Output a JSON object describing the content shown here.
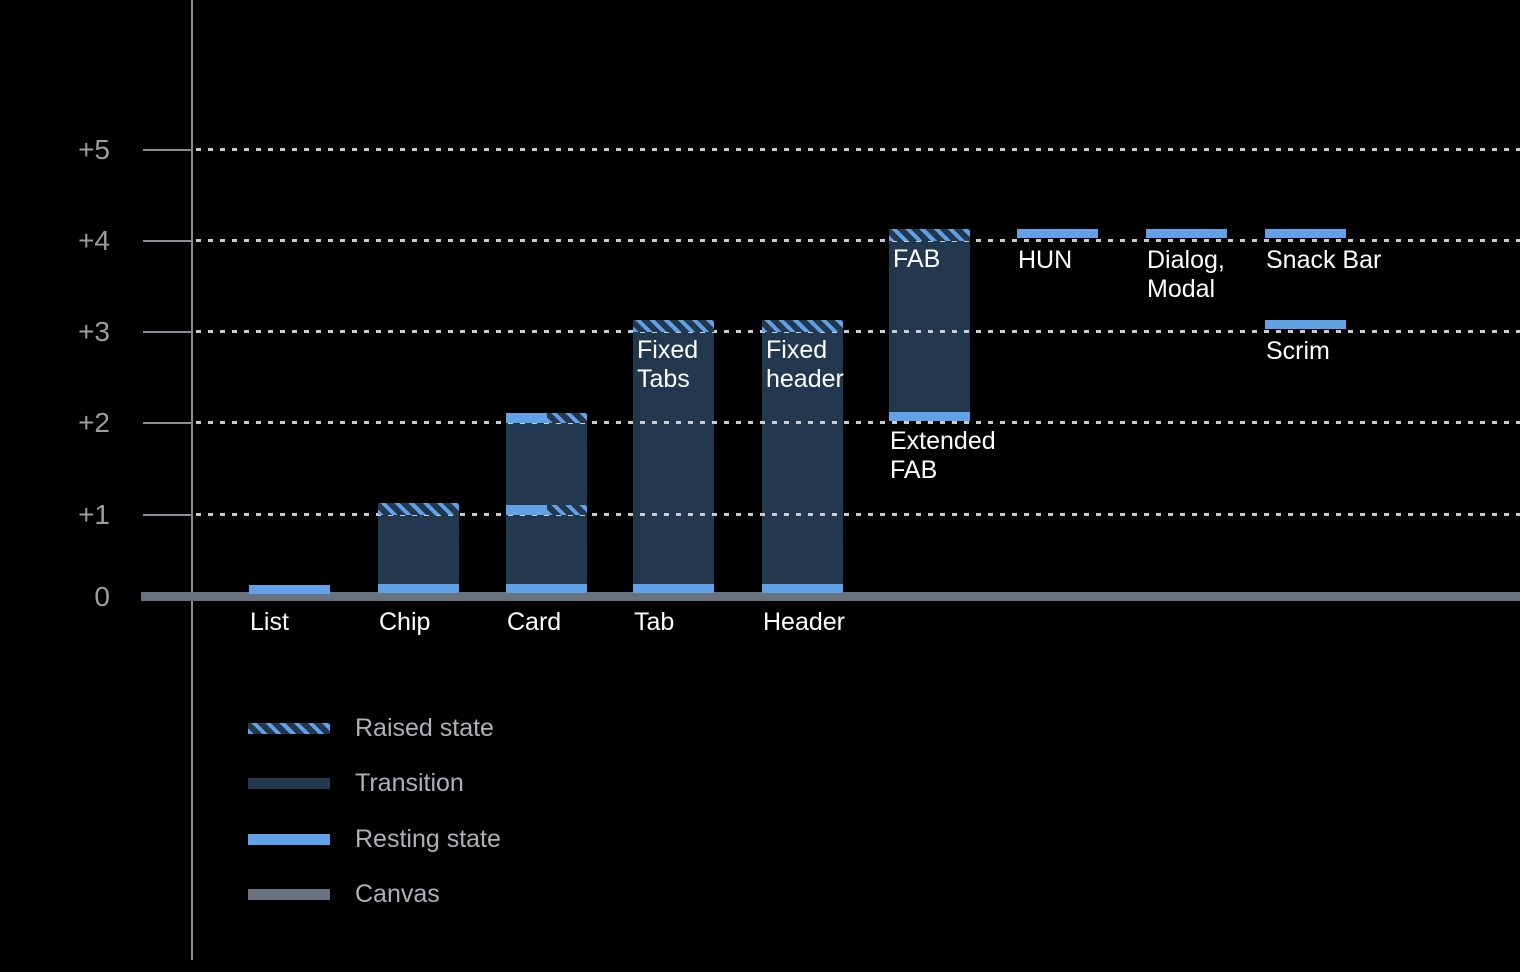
{
  "colors": {
    "background": "#000000",
    "resting_blue": "#60A1E7",
    "transition_navy": "#22384F",
    "canvas_gray": "#6A7280",
    "axis_gray": "#8A8E96",
    "grid_dot": "#C9CCD1",
    "y_label_gray": "#9D9D9D",
    "legend_text_gray": "#AEB1B6",
    "component_label_white": "#FFFFFF"
  },
  "chart_data": {
    "type": "bar",
    "subtype": "elevation-range-diagram",
    "y_axis": {
      "labels": [
        "+5",
        "+4",
        "+3",
        "+2",
        "+1",
        "0"
      ],
      "levels": [
        5,
        4,
        3,
        2,
        1,
        0
      ],
      "range": [
        0,
        5
      ],
      "gridlines": "dotted horizontal at +1..+5, solid thick canvas line at 0"
    },
    "legend": [
      {
        "label": "Raised state",
        "style": "raised"
      },
      {
        "label": "Transition",
        "style": "transition"
      },
      {
        "label": "Resting state",
        "style": "resting"
      },
      {
        "label": "Canvas",
        "style": "canvas"
      }
    ],
    "components": [
      {
        "name": "list",
        "col": 0,
        "label": "List",
        "label_placement": "canvas",
        "bar": null,
        "bands": [
          {
            "level": 0,
            "style": "resting"
          }
        ]
      },
      {
        "name": "chip",
        "col": 1,
        "label": "Chip",
        "label_placement": "canvas",
        "bar": {
          "from": 0,
          "to": 1
        },
        "bands": [
          {
            "level": 0,
            "style": "resting"
          },
          {
            "level": 1,
            "style": "raised"
          }
        ]
      },
      {
        "name": "card",
        "col": 2,
        "label": "Card",
        "label_placement": "canvas",
        "bar": {
          "from": 0,
          "to": 2
        },
        "bands": [
          {
            "level": 0,
            "style": "resting"
          },
          {
            "level": 1,
            "style": "split"
          },
          {
            "level": 2,
            "style": "split"
          }
        ]
      },
      {
        "name": "tab",
        "col": 3,
        "label": "Tab",
        "label_placement": "canvas",
        "inside_label": "Fixed\nTabs",
        "bar": {
          "from": 0,
          "to": 3
        },
        "bands": [
          {
            "level": 0,
            "style": "resting"
          },
          {
            "level": 3,
            "style": "raised"
          }
        ]
      },
      {
        "name": "header",
        "col": 4,
        "label": "Header",
        "label_placement": "canvas",
        "inside_label": "Fixed\nheader",
        "bar": {
          "from": 0,
          "to": 3
        },
        "bands": [
          {
            "level": 0,
            "style": "resting"
          },
          {
            "level": 3,
            "style": "raised"
          }
        ]
      },
      {
        "name": "fab",
        "col": 5,
        "label": "Extended\nFAB",
        "label_placement": "bar-bottom",
        "inside_label": "FAB",
        "bar": {
          "from": 2,
          "to": 4
        },
        "bands": [
          {
            "level": 2,
            "style": "resting"
          },
          {
            "level": 4,
            "style": "raised"
          }
        ]
      },
      {
        "name": "hun",
        "col": 6,
        "label": "HUN",
        "label_placement": "band",
        "bar": null,
        "bands": [
          {
            "level": 4,
            "style": "resting"
          }
        ]
      },
      {
        "name": "dialog-modal",
        "col": 7,
        "label": "Dialog,\nModal",
        "label_placement": "band",
        "bar": null,
        "bands": [
          {
            "level": 4,
            "style": "resting"
          }
        ]
      },
      {
        "name": "snack-bar",
        "col": 8,
        "label": "Snack Bar",
        "label_placement": "band",
        "bar": null,
        "bands": [
          {
            "level": 4,
            "style": "resting"
          }
        ]
      },
      {
        "name": "scrim",
        "col": 8,
        "label": "Scrim",
        "label_placement": "band",
        "bar": null,
        "bands": [
          {
            "level": 3,
            "style": "resting"
          }
        ]
      }
    ]
  }
}
